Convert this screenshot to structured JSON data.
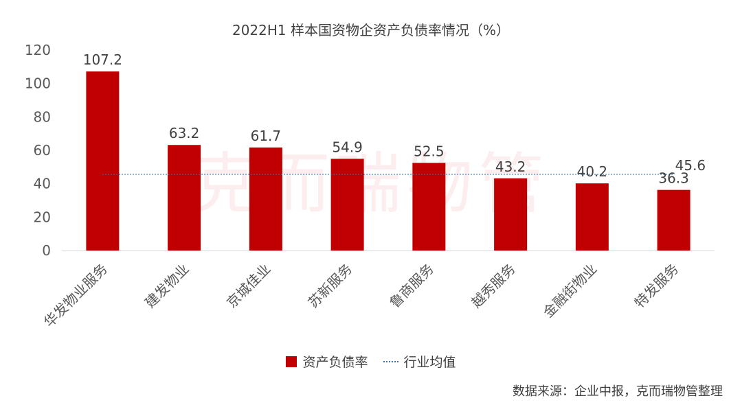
{
  "colors": {
    "bar": "#c00000",
    "avg_line": "#2e75b6",
    "axis_text": "#595959",
    "label_text": "#404040",
    "axis_line": "#d9d9d9"
  },
  "watermark": "克而瑞物管",
  "source": "数据来源：企业中报，克而瑞物管整理",
  "chart_data": {
    "type": "bar",
    "title": "2022H1 样本国资物企资产负债率情况（%）",
    "categories": [
      "华发物业服务",
      "建发物业",
      "京城佳业",
      "苏新服务",
      "鲁商服务",
      "越秀服务",
      "金融街物业",
      "特发服务"
    ],
    "series": [
      {
        "name": "资产负债率",
        "type": "bar",
        "values": [
          107.2,
          63.2,
          61.7,
          54.9,
          52.5,
          43.2,
          40.2,
          36.3
        ],
        "value_labels": [
          "107.2",
          "63.2",
          "61.7",
          "54.9",
          "52.5",
          "43.2",
          "40.2",
          "36.3"
        ]
      },
      {
        "name": "行业均值",
        "type": "line",
        "style": "dotted",
        "value": 45.6,
        "value_label": "45.6"
      }
    ],
    "ylim": [
      0,
      120
    ],
    "yticks": [
      "0",
      "20",
      "40",
      "60",
      "80",
      "100",
      "120"
    ],
    "ytick_values": [
      0,
      20,
      40,
      60,
      80,
      100,
      120
    ],
    "xlabel": "",
    "ylabel": "",
    "grid": false,
    "legend": "bottom-center"
  }
}
